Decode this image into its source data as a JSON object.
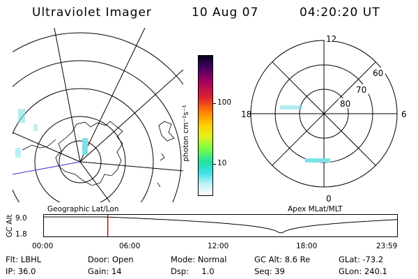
{
  "header": {
    "title": "Ultraviolet Imager",
    "date": "10 Aug 07",
    "time": "04:20:20 UT"
  },
  "colorbar": {
    "unit_label": "photon cm⁻²s⁻¹",
    "tick_100": "100",
    "tick_10": "10"
  },
  "left_map": {
    "caption": "Geographic Lat/Lon"
  },
  "right_map": {
    "caption": "Apex MLat/MLT",
    "mlt_labels": {
      "top": "12",
      "left": "18",
      "right": "6",
      "bottom": "0"
    },
    "mlat_labels": {
      "outer": "60",
      "mid": "70",
      "inner": "80"
    }
  },
  "orbit_plot": {
    "ylabel": "GC Alt",
    "y_ticks": [
      "9.0",
      "1.8"
    ],
    "x_ticks": [
      "00:00",
      "06:00",
      "12:00",
      "18:00",
      "23:59"
    ],
    "current_time_hours": 4.34
  },
  "info": {
    "flt": "Flt: LBHL",
    "ip": "IP: 36.0",
    "door": "Door: Open",
    "gain": "Gain: 14",
    "mode": "Mode: Normal",
    "dsp": "Dsp:     1.0",
    "gc_alt": "GC Alt: 8.6 Re",
    "seq": "Seq: 39",
    "glat": "GLat: -73.2",
    "glon": "GLon: 240.1"
  },
  "colors": {
    "orbit_marker": "#e00000",
    "meridian_line": "#3030c0",
    "aurora": "#7fe0e8"
  }
}
